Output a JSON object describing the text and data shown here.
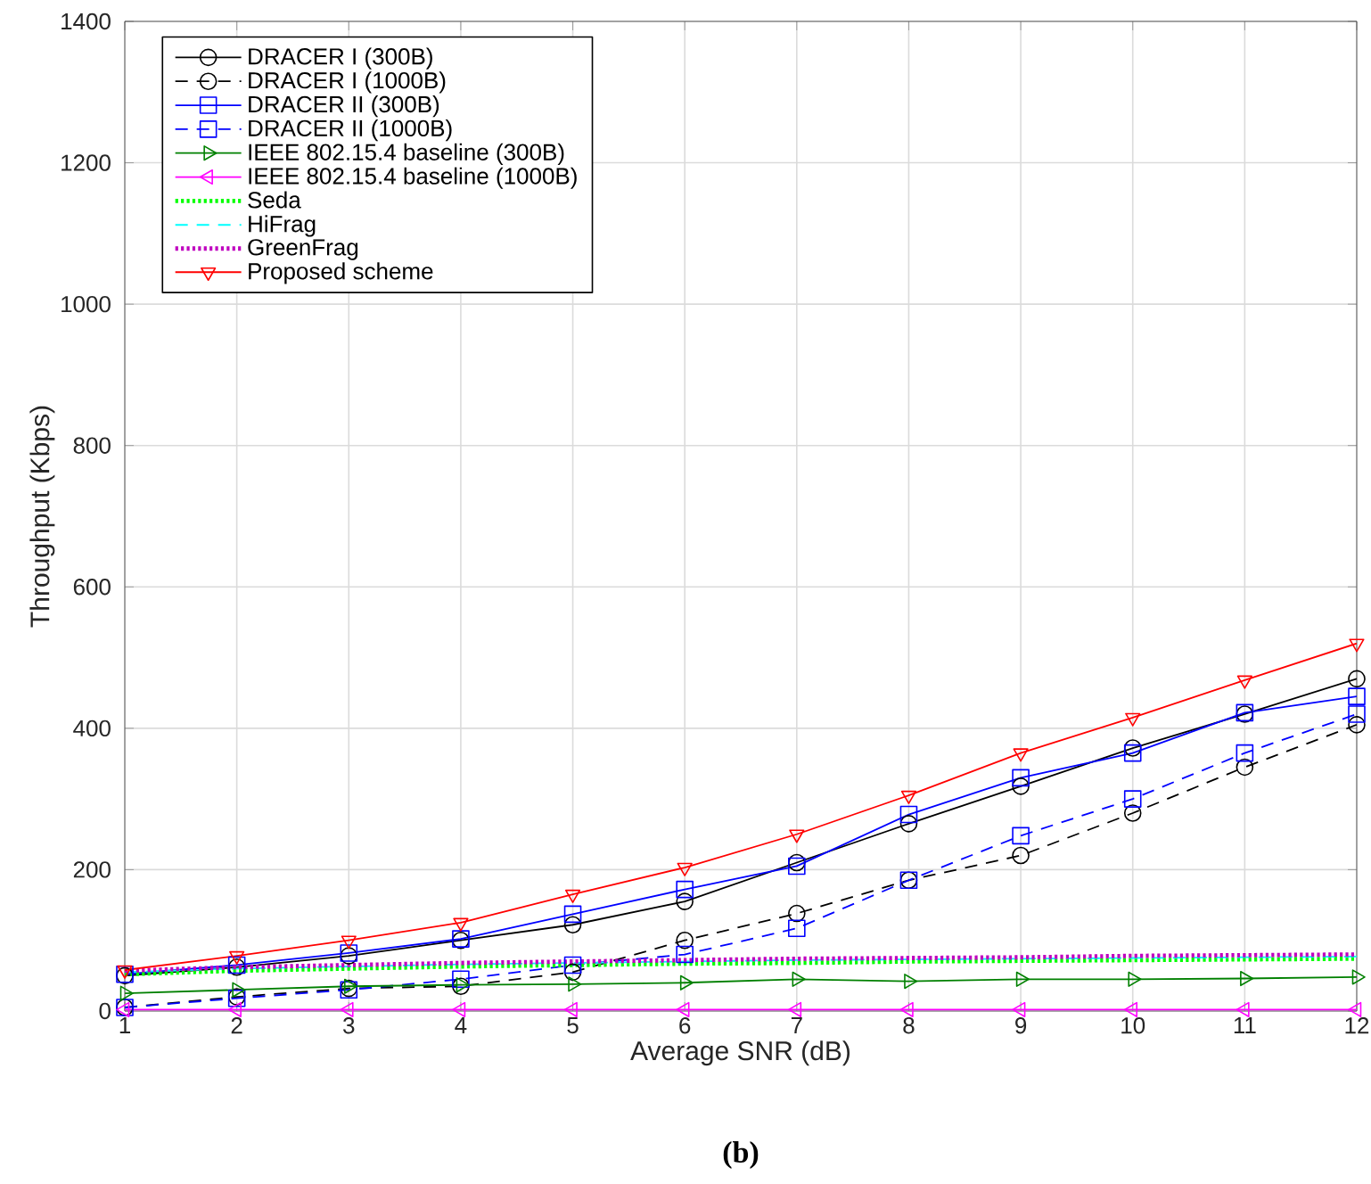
{
  "chart_data": {
    "type": "line",
    "xlabel": "Average SNR (dB)",
    "ylabel": "Throughput (Kbps)",
    "x": [
      1,
      2,
      3,
      4,
      5,
      6,
      7,
      8,
      9,
      10,
      11,
      12
    ],
    "xlim": [
      1,
      12
    ],
    "xticks": [
      1,
      2,
      3,
      4,
      5,
      6,
      7,
      8,
      9,
      10,
      11,
      12
    ],
    "ylim": [
      0,
      1400
    ],
    "yticks": [
      0,
      200,
      400,
      600,
      800,
      1000,
      1200,
      1400
    ],
    "grid": true,
    "legend": "top left",
    "annotations": [
      "(b)"
    ],
    "series": [
      {
        "name": "DRACER I (300B)",
        "color": "#000000",
        "marker": "circle",
        "line_style": "solid",
        "values": [
          50,
          62,
          78,
          100,
          122,
          155,
          210,
          265,
          318,
          372,
          420,
          470
        ]
      },
      {
        "name": "DRACER I (1000B)",
        "color": "#000000",
        "marker": "circle",
        "line_style": "dashed",
        "values": [
          5,
          20,
          32,
          35,
          55,
          100,
          138,
          185,
          220,
          280,
          345,
          405
        ]
      },
      {
        "name": "DRACER II (300B)",
        "color": "#0000ff",
        "marker": "square",
        "line_style": "solid",
        "values": [
          52,
          65,
          82,
          102,
          137,
          172,
          205,
          278,
          330,
          365,
          422,
          445
        ]
      },
      {
        "name": "DRACER II (1000B)",
        "color": "#0000ff",
        "marker": "square",
        "line_style": "dashed",
        "values": [
          5,
          18,
          30,
          45,
          65,
          80,
          117,
          185,
          248,
          300,
          365,
          420
        ]
      },
      {
        "name": "IEEE 802.15.4 baseline (300B)",
        "color": "#008000",
        "marker": "triangle-right",
        "line_style": "solid",
        "values": [
          25,
          30,
          35,
          37,
          38,
          40,
          45,
          42,
          45,
          45,
          46,
          48
        ]
      },
      {
        "name": "IEEE 802.15.4 baseline (1000B)",
        "color": "#ff00ff",
        "marker": "triangle-left",
        "line_style": "solid",
        "values": [
          2,
          2,
          2,
          2,
          2,
          2,
          2,
          2,
          2,
          2,
          2,
          2
        ]
      },
      {
        "name": "Seda",
        "color": "#00ff00",
        "marker": "none",
        "line_style": "dotted",
        "values": [
          52,
          57,
          60,
          63,
          65,
          67,
          68,
          70,
          71,
          72,
          73,
          74
        ]
      },
      {
        "name": "HiFrag",
        "color": "#00ffff",
        "marker": "none",
        "line_style": "dashed",
        "values": [
          55,
          60,
          63,
          66,
          68,
          70,
          72,
          73,
          74,
          75,
          76,
          77
        ]
      },
      {
        "name": "GreenFrag",
        "color": "#bf00bf",
        "marker": "none",
        "line_style": "dotted",
        "values": [
          57,
          62,
          65,
          68,
          70,
          72,
          74,
          75,
          76,
          78,
          79,
          80
        ]
      },
      {
        "name": "Proposed scheme",
        "color": "#ff0000",
        "marker": "triangle-down",
        "line_style": "solid",
        "values": [
          58,
          78,
          100,
          125,
          165,
          203,
          250,
          305,
          365,
          415,
          468,
          520
        ]
      }
    ]
  }
}
